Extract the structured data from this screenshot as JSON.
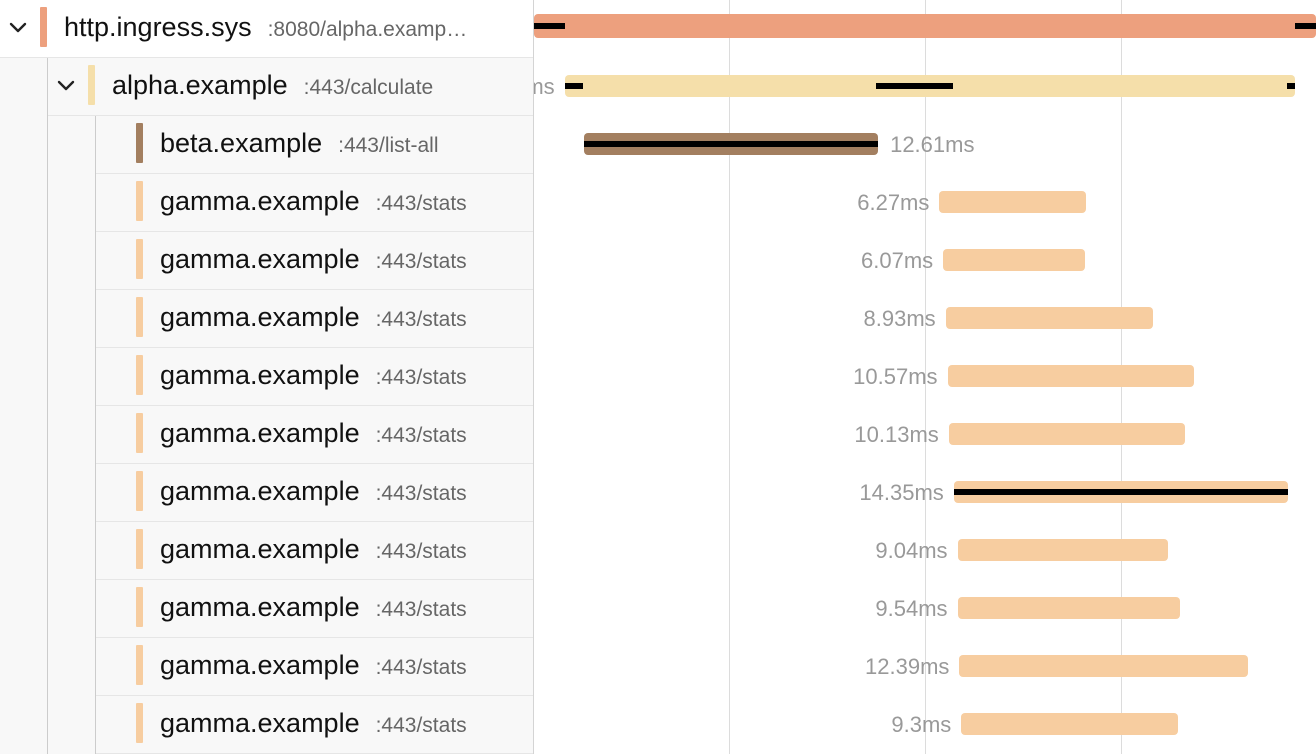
{
  "colors": {
    "ingress": "#eda07e",
    "alpha": "#f5dfaa",
    "beta": "#a37f60",
    "gamma": "#f7cda0",
    "critical_path": "#000000"
  },
  "timeline": {
    "start_ms": 0,
    "end_ms": 62.5,
    "gridlines_ms": [
      15.6,
      31.25,
      46.9
    ]
  },
  "spans": [
    {
      "id": "root",
      "depth": 0,
      "service": "http.ingress.sys",
      "operation": ":8080/alpha.examp…",
      "color_key": "ingress",
      "start_ms": 0,
      "duration_ms": 62.5,
      "duration_label": "",
      "label_side": "none",
      "collapsible": true,
      "critical": [
        [
          0,
          2.5
        ],
        [
          60.8,
          62.5
        ]
      ]
    },
    {
      "id": "alpha",
      "depth": 1,
      "service": "alpha.example",
      "operation": ":443/calculate",
      "color_key": "alpha",
      "start_ms": 2.45,
      "duration_ms": 58.35,
      "duration_label": "ms",
      "label_side": "left-cut",
      "collapsible": true,
      "critical": [
        [
          2.45,
          3.95
        ],
        [
          27.35,
          33.45
        ],
        [
          60.2,
          60.8
        ]
      ]
    },
    {
      "id": "beta",
      "depth": 2,
      "service": "beta.example",
      "operation": ":443/list-all",
      "color_key": "beta",
      "start_ms": 4.0,
      "duration_ms": 23.5,
      "duration_label": "12.61ms",
      "label_side": "right",
      "collapsible": false,
      "critical": [
        [
          4.0,
          27.5
        ]
      ]
    },
    {
      "id": "g1",
      "depth": 2,
      "service": "gamma.example",
      "operation": ":443/stats",
      "color_key": "gamma",
      "start_ms": 32.4,
      "duration_ms": 11.7,
      "duration_label": "6.27ms",
      "label_side": "left",
      "collapsible": false,
      "critical": []
    },
    {
      "id": "g2",
      "depth": 2,
      "service": "gamma.example",
      "operation": ":443/stats",
      "color_key": "gamma",
      "start_ms": 32.7,
      "duration_ms": 11.3,
      "duration_label": "6.07ms",
      "label_side": "left",
      "collapsible": false,
      "critical": []
    },
    {
      "id": "g3",
      "depth": 2,
      "service": "gamma.example",
      "operation": ":443/stats",
      "color_key": "gamma",
      "start_ms": 32.9,
      "duration_ms": 16.6,
      "duration_label": "8.93ms",
      "label_side": "left",
      "collapsible": false,
      "critical": []
    },
    {
      "id": "g4",
      "depth": 2,
      "service": "gamma.example",
      "operation": ":443/stats",
      "color_key": "gamma",
      "start_ms": 33.05,
      "duration_ms": 19.7,
      "duration_label": "10.57ms",
      "label_side": "left",
      "collapsible": false,
      "critical": []
    },
    {
      "id": "g5",
      "depth": 2,
      "service": "gamma.example",
      "operation": ":443/stats",
      "color_key": "gamma",
      "start_ms": 33.15,
      "duration_ms": 18.9,
      "duration_label": "10.13ms",
      "label_side": "left",
      "collapsible": false,
      "critical": []
    },
    {
      "id": "g6",
      "depth": 2,
      "service": "gamma.example",
      "operation": ":443/stats",
      "color_key": "gamma",
      "start_ms": 33.55,
      "duration_ms": 26.7,
      "duration_label": "14.35ms",
      "label_side": "left",
      "collapsible": false,
      "critical": [
        [
          33.55,
          60.25
        ]
      ]
    },
    {
      "id": "g7",
      "depth": 2,
      "service": "gamma.example",
      "operation": ":443/stats",
      "color_key": "gamma",
      "start_ms": 33.85,
      "duration_ms": 16.8,
      "duration_label": "9.04ms",
      "label_side": "left",
      "collapsible": false,
      "critical": []
    },
    {
      "id": "g8",
      "depth": 2,
      "service": "gamma.example",
      "operation": ":443/stats",
      "color_key": "gamma",
      "start_ms": 33.85,
      "duration_ms": 17.8,
      "duration_label": "9.54ms",
      "label_side": "left",
      "collapsible": false,
      "critical": []
    },
    {
      "id": "g9",
      "depth": 2,
      "service": "gamma.example",
      "operation": ":443/stats",
      "color_key": "gamma",
      "start_ms": 34.0,
      "duration_ms": 23.1,
      "duration_label": "12.39ms",
      "label_side": "left",
      "collapsible": false,
      "critical": []
    },
    {
      "id": "g10",
      "depth": 2,
      "service": "gamma.example",
      "operation": ":443/stats",
      "color_key": "gamma",
      "start_ms": 34.15,
      "duration_ms": 17.3,
      "duration_label": "9.3ms",
      "label_side": "left",
      "collapsible": false,
      "critical": []
    }
  ]
}
